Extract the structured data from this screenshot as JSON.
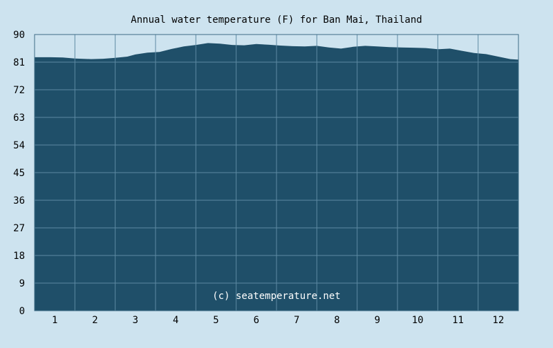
{
  "chart_data": {
    "type": "area",
    "title": "Annual water temperature (F) for Ban Mai, Thailand",
    "watermark": "(c) seatemperature.net",
    "xlabel": "",
    "ylabel": "",
    "x_ticks": [
      "1",
      "2",
      "3",
      "4",
      "5",
      "6",
      "7",
      "8",
      "9",
      "10",
      "11",
      "12"
    ],
    "y_ticks": [
      "0",
      "9",
      "18",
      "27",
      "36",
      "45",
      "54",
      "63",
      "72",
      "81",
      "90"
    ],
    "xlim": [
      0.5,
      12.5
    ],
    "ylim": [
      0,
      90
    ],
    "grid": true,
    "colors": {
      "background": "#cde3ef",
      "fill": "#1f4f69",
      "grid": "#5d8aa3",
      "border": "#3d6b85",
      "text": "#000000",
      "watermark": "#ffffff"
    },
    "series": [
      {
        "x": [
          0.5,
          0.9,
          1.2,
          1.5,
          1.9,
          2.2,
          2.5,
          2.8,
          3.0,
          3.3,
          3.6,
          3.9,
          4.2,
          4.5,
          4.8,
          5.1,
          5.4,
          5.7,
          6.0,
          6.3,
          6.6,
          6.9,
          7.2,
          7.5,
          7.8,
          8.1,
          8.4,
          8.7,
          9.0,
          9.3,
          9.6,
          9.9,
          10.2,
          10.5,
          10.8,
          11.1,
          11.4,
          11.7,
          12.0,
          12.3,
          12.5
        ],
        "y": [
          82.6,
          82.6,
          82.5,
          82.2,
          82.0,
          82.1,
          82.4,
          82.8,
          83.5,
          84.1,
          84.3,
          85.3,
          86.1,
          86.6,
          87.2,
          87.0,
          86.6,
          86.5,
          86.9,
          86.7,
          86.4,
          86.2,
          86.1,
          86.3,
          85.8,
          85.4,
          86.0,
          86.3,
          86.1,
          85.9,
          85.8,
          85.7,
          85.6,
          85.2,
          85.4,
          84.7,
          84.0,
          83.6,
          82.8,
          82.0,
          81.8
        ]
      }
    ]
  }
}
